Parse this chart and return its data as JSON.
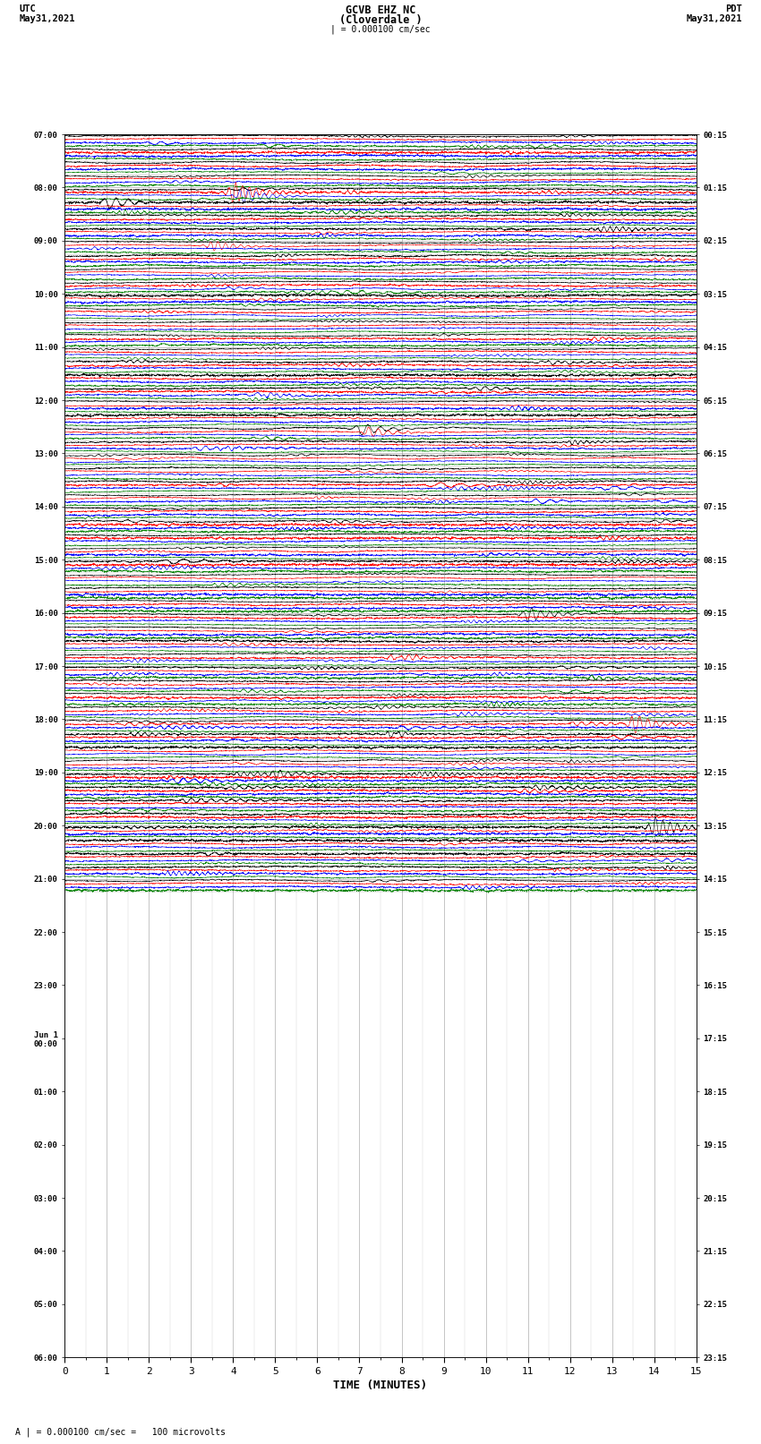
{
  "title_line1": "GCVB EHZ NC",
  "title_line2": "(Cloverdale )",
  "scale_text": "| = 0.000100 cm/sec",
  "footer_text": "A | = 0.000100 cm/sec =   100 microvolts",
  "bottom_label": "TIME (MINUTES)",
  "utc_times": [
    "07:00",
    "",
    "",
    "",
    "08:00",
    "",
    "",
    "",
    "09:00",
    "",
    "",
    "",
    "10:00",
    "",
    "",
    "",
    "11:00",
    "",
    "",
    "",
    "12:00",
    "",
    "",
    "",
    "13:00",
    "",
    "",
    "",
    "14:00",
    "",
    "",
    "",
    "15:00",
    "",
    "",
    "",
    "16:00",
    "",
    "",
    "",
    "17:00",
    "",
    "",
    "",
    "18:00",
    "",
    "",
    "",
    "19:00",
    "",
    "",
    "",
    "20:00",
    "",
    "",
    "",
    "21:00",
    "",
    "",
    "",
    "22:00",
    "",
    "",
    "",
    "23:00",
    "",
    "",
    "",
    "Jun 1\n00:00",
    "",
    "",
    "",
    "01:00",
    "",
    "",
    "",
    "02:00",
    "",
    "",
    "",
    "03:00",
    "",
    "",
    "",
    "04:00",
    "",
    "",
    "",
    "05:00",
    "",
    "",
    "",
    "06:00",
    ""
  ],
  "pdt_times": [
    "00:15",
    "",
    "",
    "",
    "01:15",
    "",
    "",
    "",
    "02:15",
    "",
    "",
    "",
    "03:15",
    "",
    "",
    "",
    "04:15",
    "",
    "",
    "",
    "05:15",
    "",
    "",
    "",
    "06:15",
    "",
    "",
    "",
    "07:15",
    "",
    "",
    "",
    "08:15",
    "",
    "",
    "",
    "09:15",
    "",
    "",
    "",
    "10:15",
    "",
    "",
    "",
    "11:15",
    "",
    "",
    "",
    "12:15",
    "",
    "",
    "",
    "13:15",
    "",
    "",
    "",
    "14:15",
    "",
    "",
    "",
    "15:15",
    "",
    "",
    "",
    "16:15",
    "",
    "",
    "",
    "17:15",
    "",
    "",
    "",
    "18:15",
    "",
    "",
    "",
    "19:15",
    "",
    "",
    "",
    "20:15",
    "",
    "",
    "",
    "21:15",
    "",
    "",
    "",
    "22:15",
    "",
    "",
    "",
    "23:15",
    ""
  ],
  "n_rows": 57,
  "traces_per_row": 4,
  "colors": [
    "black",
    "red",
    "blue",
    "green"
  ],
  "bg_color": "#ffffff",
  "grid_color": "#777777",
  "x_min": 0,
  "x_max": 15,
  "x_ticks": [
    0,
    1,
    2,
    3,
    4,
    5,
    6,
    7,
    8,
    9,
    10,
    11,
    12,
    13,
    14,
    15
  ],
  "seed": 42
}
